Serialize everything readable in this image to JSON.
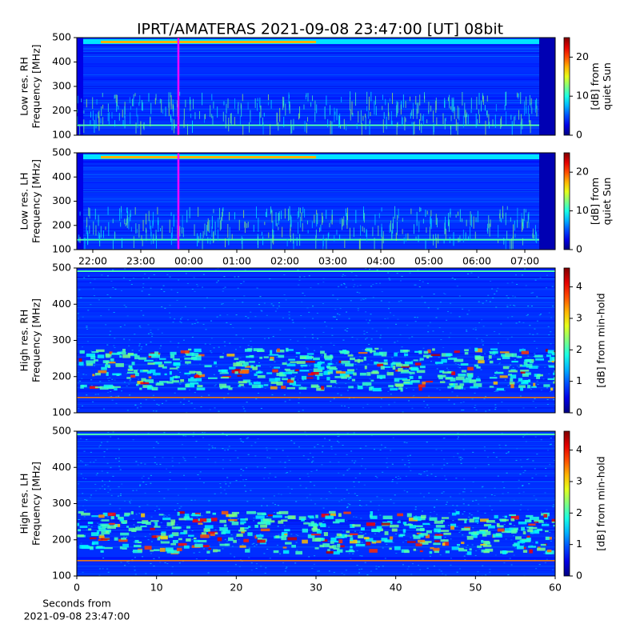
{
  "chart_data": [
    {
      "type": "heatmap",
      "title": "IPRT/AMATERAS 2021-09-08 23:47:00 [UT]   08bit",
      "ylabel": [
        "Low res. RH",
        "Frequency [MHz]"
      ],
      "ylim": [
        100,
        500
      ],
      "yticks": [
        100,
        200,
        300,
        400,
        500
      ],
      "xlim": [
        21.667,
        31.633
      ],
      "marker_x": 23.783,
      "marker_color": "#ff00ff",
      "colorbar": {
        "label": [
          "[dB] from",
          "quiet Sun"
        ],
        "lim": [
          0,
          25
        ],
        "ticks": [
          0,
          10,
          20
        ]
      }
    },
    {
      "type": "heatmap",
      "ylabel": [
        "Low res. LH",
        "Frequency [MHz]"
      ],
      "ylim": [
        100,
        500
      ],
      "yticks": [
        100,
        200,
        300,
        400,
        500
      ],
      "xlim": [
        21.667,
        31.633
      ],
      "xticks": [
        {
          "value": 22,
          "label": "22:00"
        },
        {
          "value": 23,
          "label": "23:00"
        },
        {
          "value": 24,
          "label": "00:00"
        },
        {
          "value": 25,
          "label": "01:00"
        },
        {
          "value": 26,
          "label": "02:00"
        },
        {
          "value": 27,
          "label": "03:00"
        },
        {
          "value": 28,
          "label": "04:00"
        },
        {
          "value": 29,
          "label": "05:00"
        },
        {
          "value": 30,
          "label": "06:00"
        },
        {
          "value": 31,
          "label": "07:00"
        }
      ],
      "marker_x": 23.783,
      "marker_color": "#ff00ff",
      "colorbar": {
        "label": [
          "[dB] from",
          "quiet Sun"
        ],
        "lim": [
          0,
          25
        ],
        "ticks": [
          0,
          10,
          20
        ]
      }
    },
    {
      "type": "heatmap",
      "ylabel": [
        "High res. RH",
        "Frequency [MHz]"
      ],
      "ylim": [
        100,
        500
      ],
      "yticks": [
        100,
        200,
        300,
        400,
        500
      ],
      "xlim": [
        0,
        60
      ],
      "colorbar": {
        "label": [
          "[dB] from min-hold"
        ],
        "lim": [
          0,
          4.6
        ],
        "ticks": [
          0,
          1,
          2,
          3,
          4
        ]
      }
    },
    {
      "type": "heatmap",
      "ylabel": [
        "High res. LH",
        "Frequency [MHz]"
      ],
      "ylim": [
        100,
        500
      ],
      "yticks": [
        100,
        200,
        300,
        400,
        500
      ],
      "xlim": [
        0,
        60
      ],
      "xticks": [
        0,
        10,
        20,
        30,
        40,
        50,
        60
      ],
      "xlabel": [
        "Seconds from",
        "2021-09-08 23:47:00"
      ],
      "colorbar": {
        "label": [
          "[dB] from min-hold"
        ],
        "lim": [
          0,
          4.6
        ],
        "ticks": [
          0,
          1,
          2,
          3,
          4
        ]
      }
    }
  ]
}
